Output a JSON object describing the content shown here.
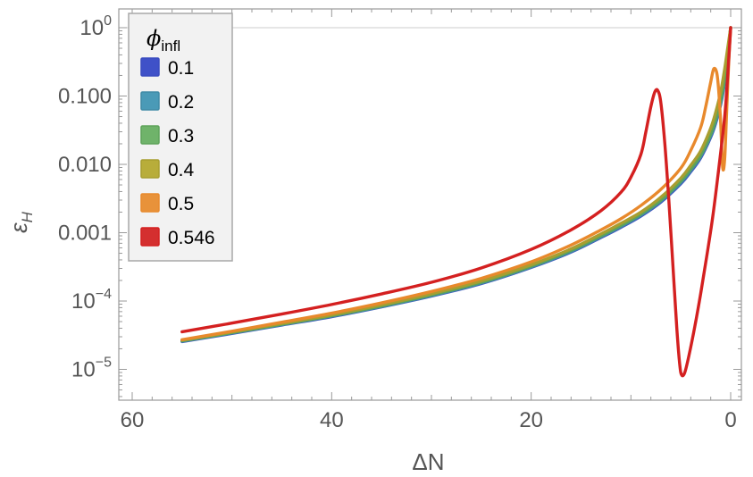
{
  "chart_data": {
    "type": "line",
    "title": "",
    "xlabel": "ΔN",
    "ylabel": "εH",
    "ylabel_main": "ε",
    "ylabel_sub": "H",
    "x_reversed": true,
    "xlim": [
      62,
      0
    ],
    "ylog": true,
    "ylim": [
      4e-06,
      1.25
    ],
    "x_ticks": [
      {
        "value": 60,
        "label": "60"
      },
      {
        "value": 40,
        "label": "40"
      },
      {
        "value": 20,
        "label": "20"
      },
      {
        "value": 0,
        "label": "0"
      }
    ],
    "y_ticks": [
      {
        "value": 1,
        "base": "10",
        "exp": "0"
      },
      {
        "value": 0.1,
        "base": "0.100",
        "exp": ""
      },
      {
        "value": 0.01,
        "base": "0.010",
        "exp": ""
      },
      {
        "value": 0.001,
        "base": "0.001",
        "exp": ""
      },
      {
        "value": 0.0001,
        "base": "10",
        "exp": "−4"
      },
      {
        "value": 1e-05,
        "base": "10",
        "exp": "−5"
      }
    ],
    "reference_line": 1,
    "legend": {
      "title_symbol": "ϕ",
      "title_sub": "infl",
      "position": "top-left"
    },
    "series": [
      {
        "name": "0.1",
        "color": "#3f51c8",
        "stroke": "#3a4cc0",
        "x": [
          55,
          50,
          45,
          40,
          35,
          30,
          25,
          20,
          16,
          13,
          11,
          9,
          7,
          5,
          4,
          3,
          2,
          1.5,
          1,
          0.6,
          0.3,
          0
        ],
        "y": [
          2.55e-05,
          3.35e-05,
          4.45e-05,
          5.9e-05,
          8.2e-05,
          0.000118,
          0.00018,
          0.00031,
          0.00052,
          0.00085,
          0.0012,
          0.00175,
          0.0028,
          0.0052,
          0.0078,
          0.0125,
          0.025,
          0.04,
          0.075,
          0.16,
          0.38,
          1.0
        ]
      },
      {
        "name": "0.2",
        "color": "#4a9ab7",
        "stroke": "#3f8aa6",
        "x": [
          55,
          50,
          45,
          40,
          35,
          30,
          25,
          20,
          16,
          13,
          11,
          9,
          7,
          5,
          4,
          3,
          2,
          1.5,
          1,
          0.6,
          0.3,
          0
        ],
        "y": [
          2.58e-05,
          3.4e-05,
          4.5e-05,
          6e-05,
          8.3e-05,
          0.00012,
          0.000183,
          0.000315,
          0.00053,
          0.00087,
          0.00123,
          0.0018,
          0.0029,
          0.0054,
          0.0081,
          0.013,
          0.026,
          0.042,
          0.079,
          0.17,
          0.4,
          1.0
        ]
      },
      {
        "name": "0.3",
        "color": "#6fb36a",
        "stroke": "#5ea35a",
        "x": [
          55,
          50,
          45,
          40,
          35,
          30,
          25,
          20,
          16,
          13,
          11,
          9,
          7,
          5,
          4,
          3,
          2,
          1.5,
          1,
          0.6,
          0.3,
          0
        ],
        "y": [
          2.62e-05,
          3.45e-05,
          4.58e-05,
          6.1e-05,
          8.5e-05,
          0.000123,
          0.000188,
          0.000325,
          0.00055,
          0.0009,
          0.00128,
          0.00188,
          0.003,
          0.0057,
          0.0086,
          0.0138,
          0.028,
          0.046,
          0.087,
          0.19,
          0.43,
          1.0
        ]
      },
      {
        "name": "0.4",
        "color": "#b8ad3a",
        "stroke": "#a89e30",
        "x": [
          55,
          50,
          45,
          40,
          35,
          30,
          25,
          20,
          16,
          13,
          11,
          9,
          7,
          5,
          4,
          3,
          2,
          1.5,
          1,
          0.6,
          0.3,
          0
        ],
        "y": [
          2.68e-05,
          3.53e-05,
          4.7e-05,
          6.28e-05,
          8.8e-05,
          0.000128,
          0.000197,
          0.00034,
          0.00058,
          0.00096,
          0.00137,
          0.002,
          0.0033,
          0.0063,
          0.0097,
          0.0158,
          0.034,
          0.058,
          0.115,
          0.25,
          0.5,
          1.0
        ]
      },
      {
        "name": "0.5",
        "color": "#e8923a",
        "stroke": "#e8892c",
        "x": [
          55,
          50,
          45,
          40,
          35,
          30,
          25,
          20,
          16,
          13,
          11,
          9,
          7,
          5,
          4,
          3,
          2.5,
          2,
          1.7,
          1.4,
          1.2,
          1.0,
          0.8,
          0.6,
          0.4,
          0.2,
          0
        ],
        "y": [
          2.72e-05,
          3.62e-05,
          4.9e-05,
          6.65e-05,
          9.4e-05,
          0.000138,
          0.000215,
          0.000375,
          0.00066,
          0.0011,
          0.0016,
          0.0025,
          0.0043,
          0.0088,
          0.016,
          0.035,
          0.07,
          0.16,
          0.25,
          0.22,
          0.12,
          0.04,
          0.009,
          0.012,
          0.06,
          0.3,
          1.0
        ]
      },
      {
        "name": "0.546",
        "color": "#d42f2f",
        "stroke": "#d42020",
        "x": [
          55,
          50,
          45,
          40,
          35,
          30,
          25,
          20,
          16,
          13,
          11,
          10,
          9,
          8.5,
          8,
          7.6,
          7.3,
          7.0,
          6.6,
          6.2,
          5.8,
          5.4,
          5.1,
          4.9,
          4.6,
          4.2,
          3.6,
          3.0,
          2.4,
          1.8,
          1.2,
          0.6,
          0.3,
          0
        ],
        "y": [
          3.55e-05,
          4.75e-05,
          6.45e-05,
          8.9e-05,
          0.000127,
          0.000188,
          0.000305,
          0.00057,
          0.0011,
          0.0021,
          0.0039,
          0.0065,
          0.014,
          0.03,
          0.07,
          0.115,
          0.12,
          0.08,
          0.02,
          0.003,
          0.00035,
          4e-05,
          1.15e-05,
          8.2e-06,
          9e-06,
          1.55e-05,
          4.2e-05,
          0.00013,
          0.00045,
          0.0017,
          0.0085,
          0.05,
          0.2,
          1.0
        ]
      }
    ]
  }
}
